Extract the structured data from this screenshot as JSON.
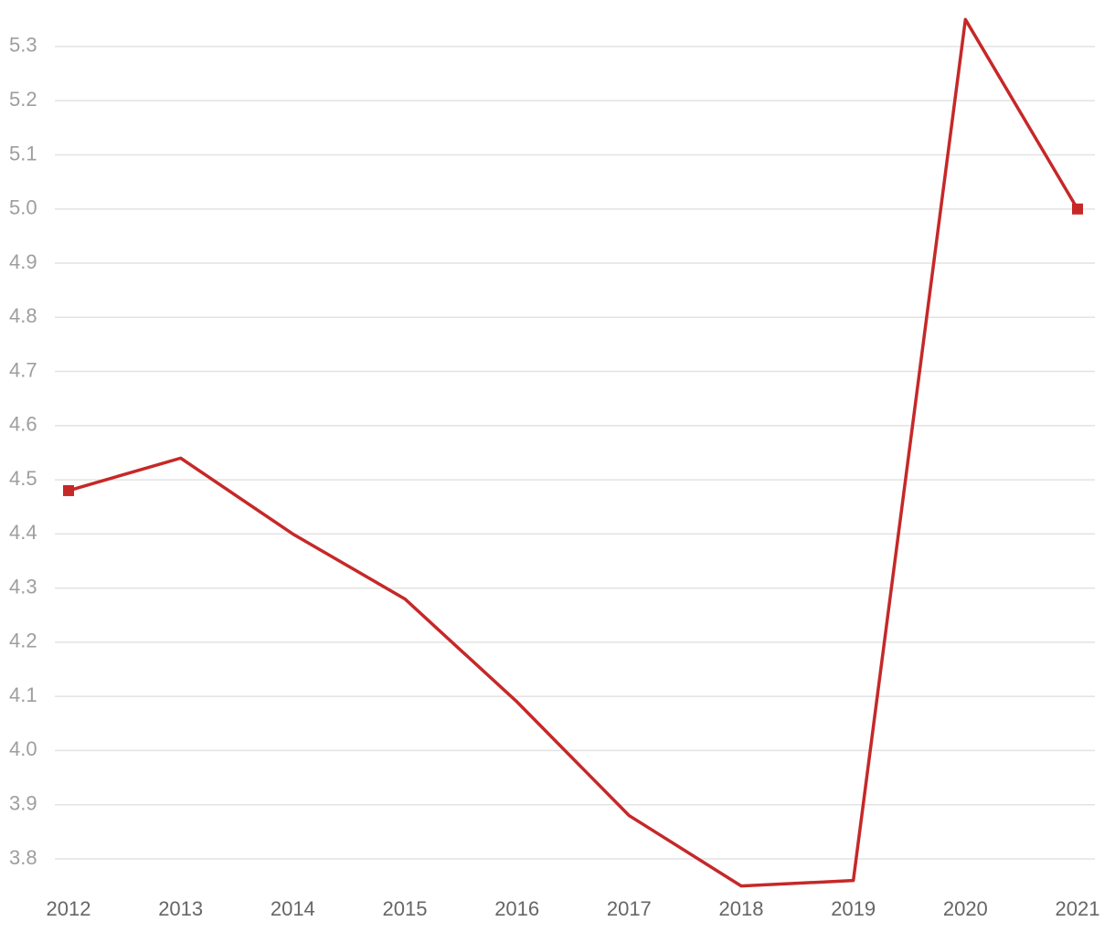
{
  "chart_data": {
    "type": "line",
    "categories": [
      "2012",
      "2013",
      "2014",
      "2015",
      "2016",
      "2017",
      "2018",
      "2019",
      "2020",
      "2021"
    ],
    "series": [
      {
        "color": "#c62828",
        "values": [
          4.48,
          4.54,
          4.4,
          4.28,
          4.09,
          3.88,
          3.75,
          3.76,
          5.35,
          5.0
        ]
      }
    ],
    "ylim": [
      3.75,
      5.35
    ],
    "yticks": [
      3.8,
      3.9,
      {
        "value": 4.0,
        "label": "4.0"
      },
      4.1,
      4.2,
      4.3,
      4.4,
      4.5,
      4.6,
      4.7,
      4.8,
      4.9,
      {
        "value": 5.0,
        "label": "5.0"
      },
      5.1,
      5.2,
      5.3
    ],
    "grid": true
  }
}
